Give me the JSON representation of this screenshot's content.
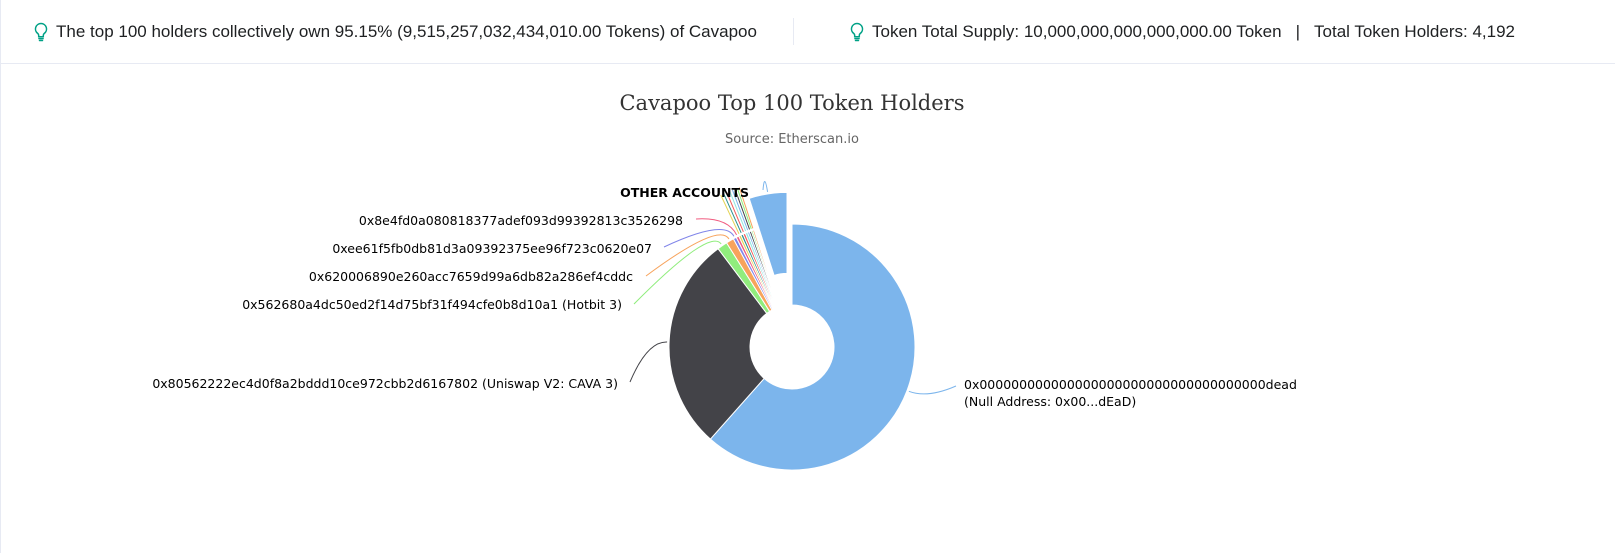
{
  "stats": {
    "top_holders_text": "The top 100 holders collectively own 95.15% (9,515,257,032,434,010.00 Tokens) of Cavapoo",
    "total_supply_text": "Token Total Supply: 10,000,000,000,000,000.00 Token",
    "separator": "|",
    "total_holders_text": "Total Token Holders: 4,192",
    "icon": "lightbulb-icon",
    "icon_color": "#00a186"
  },
  "chart_data": {
    "type": "pie",
    "title": "Cavapoo Top 100 Token Holders",
    "subtitle": "Source: Etherscan.io",
    "slices": [
      {
        "label": "0x000000000000000000000000000000000000dead",
        "label_line2": "(Null Address: 0x00...dEaD)",
        "value": 60.0,
        "color": "#7cb5ec"
      },
      {
        "label": "0x80562222ec4d0f8a2bddd10ce972cbb2d6167802 (Uniswap V2: CAVA 3)",
        "value": 27.5,
        "color": "#434348"
      },
      {
        "label": "0x562680a4dc50ed2f14d75bf31f494cfe0b8d10a1 (Hotbit 3)",
        "value": 1.3,
        "color": "#90ed7d"
      },
      {
        "label": "0x620006890e260acc7659d99a6db82a286ef4cddc",
        "value": 1.0,
        "color": "#f7a35c"
      },
      {
        "label": "0xee61f5fb0db81d3a09392375ee96f723c0620e07",
        "value": 0.4,
        "color": "#8085e9"
      },
      {
        "label": "0x8e4fd0a080818377adef093d99392813c3526298",
        "value": 0.35,
        "color": "#f15c80"
      },
      {
        "label": "",
        "value": 0.3,
        "color": "#e4d354"
      },
      {
        "label": "",
        "value": 0.3,
        "color": "#2b908f"
      },
      {
        "label": "",
        "value": 0.3,
        "color": "#f45b5b"
      },
      {
        "label": "",
        "value": 0.3,
        "color": "#91e8e1"
      },
      {
        "label": "",
        "value": 0.25,
        "color": "#7cb5ec"
      },
      {
        "label": "",
        "value": 0.25,
        "color": "#434348"
      },
      {
        "label": "",
        "value": 0.2,
        "color": "#90ed7d"
      },
      {
        "label": "",
        "value": 0.2,
        "color": "#f7a35c"
      },
      {
        "label": "OTHER ACCOUNTS",
        "value": 4.85,
        "color": "#7cb5ec",
        "sliced": true
      }
    ]
  }
}
